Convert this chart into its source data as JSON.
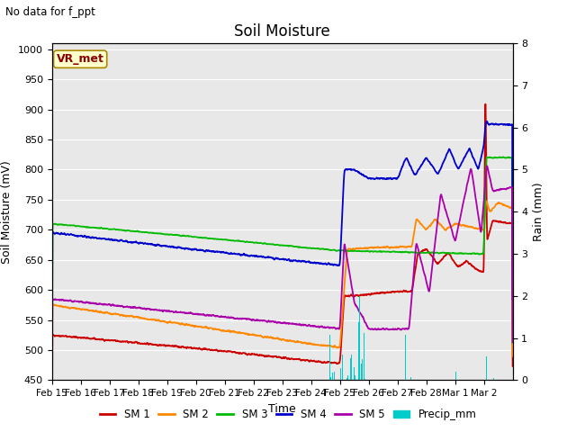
{
  "title": "Soil Moisture",
  "subtitle": "No data for f_ppt",
  "ylabel_left": "Soil Moisture (mV)",
  "ylabel_right": "Rain (mm)",
  "xlabel": "Time",
  "ylim_left": [
    450,
    1010
  ],
  "ylim_right": [
    0,
    8.0
  ],
  "yticks_left": [
    450,
    500,
    550,
    600,
    650,
    700,
    750,
    800,
    850,
    900,
    950,
    1000
  ],
  "yticks_right": [
    0.0,
    1.0,
    2.0,
    3.0,
    4.0,
    5.0,
    6.0,
    7.0,
    8.0
  ],
  "xtick_labels": [
    "Feb 15",
    "Feb 16",
    "Feb 17",
    "Feb 18",
    "Feb 19",
    "Feb 20",
    "Feb 21",
    "Feb 22",
    "Feb 23",
    "Feb 24",
    "Feb 25",
    "Feb 26",
    "Feb 27",
    "Feb 28",
    "Mar 1",
    "Mar 2"
  ],
  "colors": {
    "SM1": "#cc0000",
    "SM2": "#ff8800",
    "SM3": "#00bb00",
    "SM4": "#0000cc",
    "SM5": "#aa00aa",
    "precip": "#00cccc",
    "background": "#e8e8e8",
    "grid": "#ffffff"
  },
  "vr_met_box": {
    "text": "VR_met",
    "facecolor": "#ffffcc",
    "edgecolor": "#aa8800",
    "textcolor": "#880000"
  }
}
